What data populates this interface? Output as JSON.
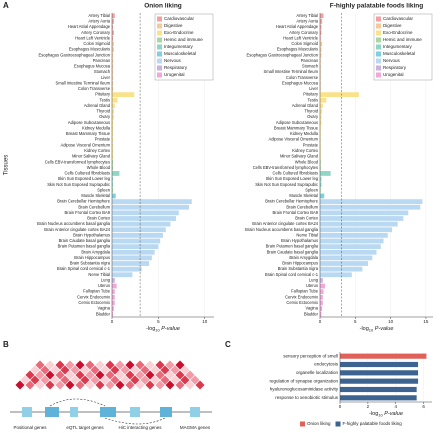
{
  "panel_labels": [
    "A",
    "B",
    "C"
  ],
  "chart_data": [
    {
      "type": "hbar",
      "title": "Onion liking",
      "y_label": "Tissues",
      "x_label": [
        "-log",
        "10",
        "P-value"
      ],
      "categories": [
        "Artery Tibial",
        "Artery Aorta",
        "Heart Atrial Appendage",
        "Artery Coronary",
        "Heart Left Ventricle",
        "Colon Sigmoid",
        "Esophagus Muscularis",
        "Esophagus Gastroesophageal Junction",
        "Pancreas",
        "Esophagus Mucosa",
        "Stomach",
        "Liver",
        "Small Intestine Terminal Ileum",
        "Colon Transverse",
        "Pituitary",
        "Testis",
        "Adrenal Gland",
        "Thyroid",
        "Ovary",
        "Adipose Subcutaneous",
        "Kidney Medulla",
        "Breast Mammary Tissue",
        "Prostate",
        "Adipose Visceral Omentum",
        "Kidney Cortex",
        "Minor Salivary Gland",
        "Cells EBV-transformed lymphocytes",
        "Whole Blood",
        "Cells Cultured fibroblasts",
        "Skin Sun Exposed Lower leg",
        "Skin Not Sun Exposed Suprapubic",
        "Spleen",
        "Muscle Skeletal",
        "Brain Cerebellar Hemisphere",
        "Brain Cerebellum",
        "Brain Frontal Cortex BA9",
        "Brain Cortex",
        "Brain Nucleus accumbens basal ganglia",
        "Brain Anterior cingulate cortex BA24",
        "Brain Hypothalamus",
        "Brain Caudate basal ganglia",
        "Brain Putamen basal ganglia",
        "Brain Amygdala",
        "Brain Hippocampus",
        "Brain Substantia nigra",
        "Brain Spinal cord cervical c-1",
        "Nerve Tibial",
        "Lung",
        "Uterus",
        "Fallopian Tube",
        "Cervix Endocervix",
        "Cervix Ectocervix",
        "Vagina",
        "Bladder"
      ],
      "values": [
        0.3,
        0.2,
        0.1,
        0.2,
        0.1,
        0.2,
        0.2,
        0.1,
        0.1,
        0.1,
        0.1,
        0.1,
        0.1,
        0.1,
        2.4,
        0.6,
        0.3,
        0.2,
        0.2,
        0.1,
        0.1,
        0.1,
        0.1,
        0.1,
        0.1,
        0.1,
        0.1,
        0.1,
        0.8,
        0.1,
        0.1,
        0.1,
        0.4,
        8.6,
        8.3,
        7.2,
        6.9,
        6.3,
        5.8,
        5.5,
        5.2,
        5.0,
        4.6,
        4.3,
        4.0,
        3.2,
        2.2,
        0.3,
        0.5,
        0.3,
        0.3,
        0.3,
        0.2,
        0.1
      ],
      "colors": [
        "#f2a0a0",
        "#f2a0a0",
        "#f2a0a0",
        "#f2a0a0",
        "#f2a0a0",
        "#f6c89a",
        "#f6c89a",
        "#f6c89a",
        "#f6c89a",
        "#f6c89a",
        "#f6c89a",
        "#f6c89a",
        "#f6c89a",
        "#f6c89a",
        "#f9e28a",
        "#f9e28a",
        "#f9e28a",
        "#f9e28a",
        "#f9e28a",
        "#f9e28a",
        "#f9e28a",
        "#f9e28a",
        "#f9e28a",
        "#f9e28a",
        "#f9e28a",
        "#f9e28a",
        "#a8d8a0",
        "#a8d8a0",
        "#8fd6c6",
        "#8fd6c6",
        "#8fd6c6",
        "#a8d8a0",
        "#7fcfe0",
        "#b9d8f2",
        "#b9d8f2",
        "#b9d8f2",
        "#b9d8f2",
        "#b9d8f2",
        "#b9d8f2",
        "#b9d8f2",
        "#b9d8f2",
        "#b9d8f2",
        "#b9d8f2",
        "#b9d8f2",
        "#b9d8f2",
        "#b9d8f2",
        "#b9d8f2",
        "#c9b3e0",
        "#f0a8d8",
        "#f0a8d8",
        "#f0a8d8",
        "#f0a8d8",
        "#f0a8d8",
        "#f0a8d8"
      ],
      "xlim": [
        0,
        11
      ],
      "xticks": [
        0,
        5,
        10
      ],
      "threshold": 3.03,
      "legend_corner": "top-right",
      "legend": [
        {
          "name": "Cardiovascular",
          "color": "#f2a0a0"
        },
        {
          "name": "Digestive",
          "color": "#f6c89a"
        },
        {
          "name": "Exo-Endocrine",
          "color": "#f9e28a"
        },
        {
          "name": "Hemic and immune",
          "color": "#a8d8a0"
        },
        {
          "name": "Integumentary",
          "color": "#8fd6c6"
        },
        {
          "name": "Musculoskeletal",
          "color": "#7fcfe0"
        },
        {
          "name": "Nervous",
          "color": "#b9d8f2"
        },
        {
          "name": "Respiratory",
          "color": "#c9b3e0"
        },
        {
          "name": "Urogenital",
          "color": "#f0a8d8"
        }
      ]
    },
    {
      "type": "hbar",
      "title": "F-highly palatable foods liking",
      "x_label": [
        "-log",
        "10",
        "P-value"
      ],
      "categories": [
        "Artery Tibial",
        "Artery Aorta",
        "Heart Atrial Appendage",
        "Artery Coronary",
        "Heart Left Ventricle",
        "Colon Sigmoid",
        "Esophagus Muscularis",
        "Esophagus Gastroesophageal Junction",
        "Pancreas",
        "Stomach",
        "Small Intestine Terminal Ileum",
        "Colon Transverse",
        "Esophagus Mucosa",
        "Liver",
        "Pituitary",
        "Testis",
        "Adrenal Gland",
        "Thyroid",
        "Ovary",
        "Adipose Subcutaneous",
        "Breast Mammary Tissue",
        "Kidney Medulla",
        "Adipose Visceral Omentum",
        "Prostate",
        "Kidney Cortex",
        "Minor Salivary Gland",
        "Whole Blood",
        "Cells EBV-transformed lymphocytes",
        "Cells Cultured fibroblasts",
        "Skin Sun Exposed Lower leg",
        "Skin Not Sun Exposed Suprapubic",
        "Spleen",
        "Muscle Skeletal",
        "Brain Cerebellar Hemisphere",
        "Brain Cerebellum",
        "Brain Frontal Cortex BA9",
        "Brain Cortex",
        "Brain Anterior cingulate cortex BA24",
        "Brain Nucleus accumbens basal ganglia",
        "Nerve Tibial",
        "Brain Hypothalamus",
        "Brain Putamen basal ganglia",
        "Brain Caudate basal ganglia",
        "Brain Amygdala",
        "Brain Hippocampus",
        "Brain Substantia nigra",
        "Brain Spinal cord cervical c-1",
        "Lung",
        "Uterus",
        "Fallopian Tube",
        "Cervix Endocervix",
        "Cervix Ectocervix",
        "Vagina",
        "Bladder"
      ],
      "values": [
        0.5,
        0.3,
        0.2,
        0.2,
        0.1,
        0.3,
        0.2,
        0.2,
        0.1,
        0.1,
        0.1,
        0.1,
        0.1,
        0.1,
        5.5,
        0.9,
        0.4,
        0.3,
        0.2,
        0.2,
        0.1,
        0.1,
        0.1,
        0.1,
        0.1,
        0.1,
        0.1,
        0.1,
        1.5,
        0.2,
        0.2,
        0.1,
        0.6,
        14.5,
        14.2,
        12.5,
        11.8,
        11.0,
        10.2,
        9.6,
        9.0,
        8.6,
        8.0,
        7.4,
        6.8,
        6.0,
        4.5,
        0.4,
        0.7,
        0.5,
        0.4,
        0.4,
        0.3,
        0.2
      ],
      "colors": [
        "#f2a0a0",
        "#f2a0a0",
        "#f2a0a0",
        "#f2a0a0",
        "#f2a0a0",
        "#f6c89a",
        "#f6c89a",
        "#f6c89a",
        "#f6c89a",
        "#f6c89a",
        "#f6c89a",
        "#f6c89a",
        "#f6c89a",
        "#f6c89a",
        "#f9e28a",
        "#f9e28a",
        "#f9e28a",
        "#f9e28a",
        "#f9e28a",
        "#f9e28a",
        "#f9e28a",
        "#f9e28a",
        "#f9e28a",
        "#f9e28a",
        "#f9e28a",
        "#f9e28a",
        "#a8d8a0",
        "#a8d8a0",
        "#8fd6c6",
        "#8fd6c6",
        "#8fd6c6",
        "#a8d8a0",
        "#7fcfe0",
        "#b9d8f2",
        "#b9d8f2",
        "#b9d8f2",
        "#b9d8f2",
        "#b9d8f2",
        "#b9d8f2",
        "#b9d8f2",
        "#b9d8f2",
        "#b9d8f2",
        "#b9d8f2",
        "#b9d8f2",
        "#b9d8f2",
        "#b9d8f2",
        "#b9d8f2",
        "#c9b3e0",
        "#f0a8d8",
        "#f0a8d8",
        "#f0a8d8",
        "#f0a8d8",
        "#f0a8d8",
        "#f0a8d8"
      ],
      "xlim": [
        0,
        16
      ],
      "xticks": [
        0,
        5,
        10,
        15
      ],
      "threshold": 3.03,
      "legend_corner": "top-right",
      "legend": [
        {
          "name": "Cardiovascular",
          "color": "#f2a0a0"
        },
        {
          "name": "Digestive",
          "color": "#f6c89a"
        },
        {
          "name": "Exo-Endocrine",
          "color": "#f9e28a"
        },
        {
          "name": "Hemic and immune",
          "color": "#a8d8a0"
        },
        {
          "name": "Integumentary",
          "color": "#8fd6c6"
        },
        {
          "name": "Musculoskeletal",
          "color": "#7fcfe0"
        },
        {
          "name": "Nervous",
          "color": "#b9d8f2"
        },
        {
          "name": "Respiratory",
          "color": "#c9b3e0"
        },
        {
          "name": "Urogenital",
          "color": "#f0a8d8"
        }
      ]
    },
    {
      "type": "hbar",
      "x_label": [
        "-log",
        "10",
        "P-value"
      ],
      "categories": [
        "sensory perception of smell",
        "endocytosis",
        "organelle localization",
        "regulation of synapse organization",
        "hyaluronoglucosaminidase activity",
        "response to xenobiotic stimulus"
      ],
      "values": [
        6.2,
        5.6,
        5.6,
        5.6,
        5.5,
        5.5
      ],
      "colors": [
        "#e0605a",
        "#3d6491",
        "#3d6491",
        "#3d6491",
        "#3d6491",
        "#3d6491"
      ],
      "xlim": [
        0,
        6.6
      ],
      "xticks": [
        0,
        2,
        4,
        6
      ],
      "legend_corner": "bottom",
      "legend": [
        {
          "name": "Onion liking",
          "color": "#e0605a"
        },
        {
          "name": "F-highly palatable foods liking",
          "color": "#3d6491"
        }
      ]
    }
  ],
  "diagram": {
    "labels": [
      "Positional genes",
      "eQTL target genes",
      "HiC interacting genes",
      "MAGMA genes"
    ]
  }
}
